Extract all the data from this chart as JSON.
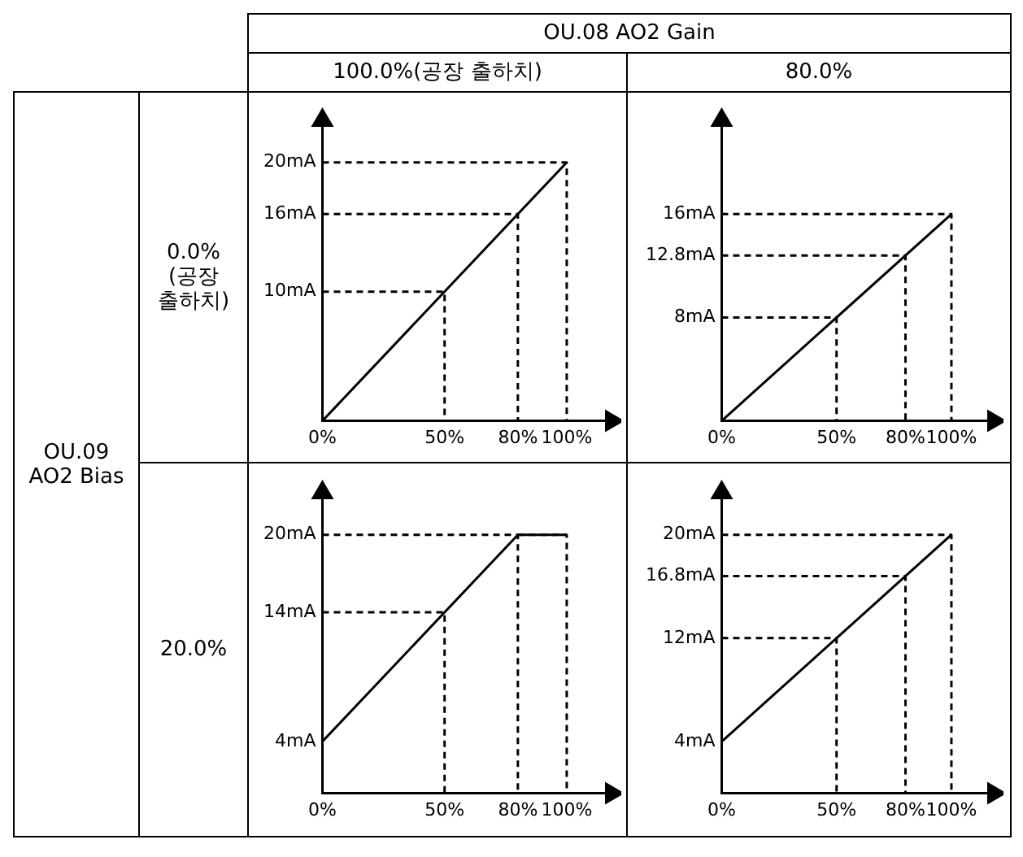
{
  "chart_data": [
    {
      "type": "line",
      "xlim": [
        0,
        117
      ],
      "ylim": [
        0,
        23
      ],
      "xticks": [
        {
          "value": 0,
          "label": "0%"
        },
        {
          "value": 50,
          "label": "50%"
        },
        {
          "value": 80,
          "label": "80%"
        },
        {
          "value": 100,
          "label": "100%"
        }
      ],
      "yticks": [
        {
          "value": 10,
          "label": "10mA"
        },
        {
          "value": 16,
          "label": "16mA"
        },
        {
          "value": 20,
          "label": "20mA"
        }
      ],
      "grid": false,
      "legend": false,
      "marker": "none",
      "line_style": "solid",
      "series": [
        {
          "color": "#000000",
          "x": [
            0,
            100
          ],
          "values": [
            0,
            20
          ]
        },
        {
          "color": "#000000",
          "line_style": "dashed",
          "x": [
            0,
            50,
            50
          ],
          "values": [
            10,
            10,
            0
          ]
        },
        {
          "color": "#000000",
          "line_style": "dashed",
          "x": [
            0,
            80,
            80
          ],
          "values": [
            16,
            16,
            0
          ]
        },
        {
          "color": "#000000",
          "line_style": "dashed",
          "x": [
            0,
            100,
            100
          ],
          "values": [
            20,
            20,
            0
          ]
        }
      ]
    },
    {
      "type": "line",
      "xlim": [
        0,
        117
      ],
      "ylim": [
        0,
        23
      ],
      "xticks": [
        {
          "value": 0,
          "label": "0%"
        },
        {
          "value": 50,
          "label": "50%"
        },
        {
          "value": 80,
          "label": "80%"
        },
        {
          "value": 100,
          "label": "100%"
        }
      ],
      "yticks": [
        {
          "value": 8,
          "label": "8mA"
        },
        {
          "value": 12.8,
          "label": "12.8mA"
        },
        {
          "value": 16,
          "label": "16mA"
        }
      ],
      "grid": false,
      "legend": false,
      "marker": "none",
      "line_style": "solid",
      "series": [
        {
          "color": "#000000",
          "x": [
            0,
            100
          ],
          "values": [
            0,
            16
          ]
        },
        {
          "color": "#000000",
          "line_style": "dashed",
          "x": [
            0,
            50,
            50
          ],
          "values": [
            8,
            8,
            0
          ]
        },
        {
          "color": "#000000",
          "line_style": "dashed",
          "x": [
            0,
            80,
            80
          ],
          "values": [
            12.8,
            12.8,
            0
          ]
        },
        {
          "color": "#000000",
          "line_style": "dashed",
          "x": [
            0,
            100,
            100
          ],
          "values": [
            16,
            16,
            0
          ]
        }
      ]
    },
    {
      "type": "line",
      "xlim": [
        0,
        117
      ],
      "ylim": [
        0,
        23
      ],
      "xticks": [
        {
          "value": 0,
          "label": "0%"
        },
        {
          "value": 50,
          "label": "50%"
        },
        {
          "value": 80,
          "label": "80%"
        },
        {
          "value": 100,
          "label": "100%"
        }
      ],
      "yticks": [
        {
          "value": 4,
          "label": "4mA"
        },
        {
          "value": 14,
          "label": "14mA"
        },
        {
          "value": 20,
          "label": "20mA"
        }
      ],
      "grid": false,
      "legend": false,
      "marker": "none",
      "line_style": "solid",
      "series": [
        {
          "color": "#000000",
          "x": [
            0,
            80,
            100
          ],
          "values": [
            4,
            20,
            20
          ]
        },
        {
          "color": "#000000",
          "line_style": "dashed",
          "x": [
            0,
            50,
            50
          ],
          "values": [
            14,
            14,
            0
          ]
        },
        {
          "color": "#000000",
          "line_style": "dashed",
          "x": [
            0,
            80,
            80
          ],
          "values": [
            20,
            20,
            0
          ]
        },
        {
          "color": "#000000",
          "line_style": "dashed",
          "x": [
            80,
            100,
            100
          ],
          "values": [
            20,
            20,
            0
          ]
        }
      ]
    },
    {
      "type": "line",
      "xlim": [
        0,
        117
      ],
      "ylim": [
        0,
        23
      ],
      "xticks": [
        {
          "value": 0,
          "label": "0%"
        },
        {
          "value": 50,
          "label": "50%"
        },
        {
          "value": 80,
          "label": "80%"
        },
        {
          "value": 100,
          "label": "100%"
        }
      ],
      "yticks": [
        {
          "value": 4,
          "label": "4mA"
        },
        {
          "value": 12,
          "label": "12mA"
        },
        {
          "value": 16.8,
          "label": "16.8mA"
        },
        {
          "value": 20,
          "label": "20mA"
        }
      ],
      "grid": false,
      "legend": false,
      "marker": "none",
      "line_style": "solid",
      "series": [
        {
          "color": "#000000",
          "x": [
            0,
            100
          ],
          "values": [
            4,
            20
          ]
        },
        {
          "color": "#000000",
          "line_style": "dashed",
          "x": [
            0,
            50,
            50
          ],
          "values": [
            12,
            12,
            0
          ]
        },
        {
          "color": "#000000",
          "line_style": "dashed",
          "x": [
            0,
            80,
            80
          ],
          "values": [
            16.8,
            16.8,
            0
          ]
        },
        {
          "color": "#000000",
          "line_style": "dashed",
          "x": [
            0,
            100,
            100
          ],
          "values": [
            20,
            20,
            0
          ]
        }
      ]
    },
    {
      "type": "other",
      "annotations": [
        "OU.08 AO2 Gain",
        "100.0%(공장 출하치)",
        "80.0%",
        "OU.09\nAO2 Bias",
        "0.0%\n(공장\n출하치)",
        "20.0%"
      ]
    }
  ]
}
